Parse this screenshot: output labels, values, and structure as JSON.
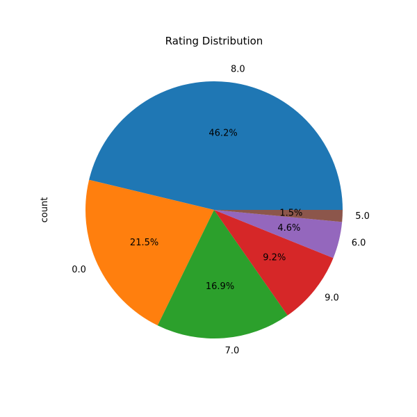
{
  "chart_data": {
    "type": "pie",
    "title": "Rating Distribution",
    "ylabel": "count",
    "start_angle_deg": 0,
    "direction": "counterclockwise",
    "slices": [
      {
        "label": "8.0",
        "percent": 46.2,
        "pct_label": "46.2%",
        "color": "#1f77b4"
      },
      {
        "label": "0.0",
        "percent": 21.5,
        "pct_label": "21.5%",
        "color": "#ff7f0e"
      },
      {
        "label": "7.0",
        "percent": 16.9,
        "pct_label": "16.9%",
        "color": "#2ca02c"
      },
      {
        "label": "9.0",
        "percent": 9.2,
        "pct_label": "9.2%",
        "color": "#d62728"
      },
      {
        "label": "6.0",
        "percent": 4.6,
        "pct_label": "4.6%",
        "color": "#9467bd"
      },
      {
        "label": "5.0",
        "percent": 1.5,
        "pct_label": "1.5%",
        "color": "#8c564b"
      }
    ]
  }
}
